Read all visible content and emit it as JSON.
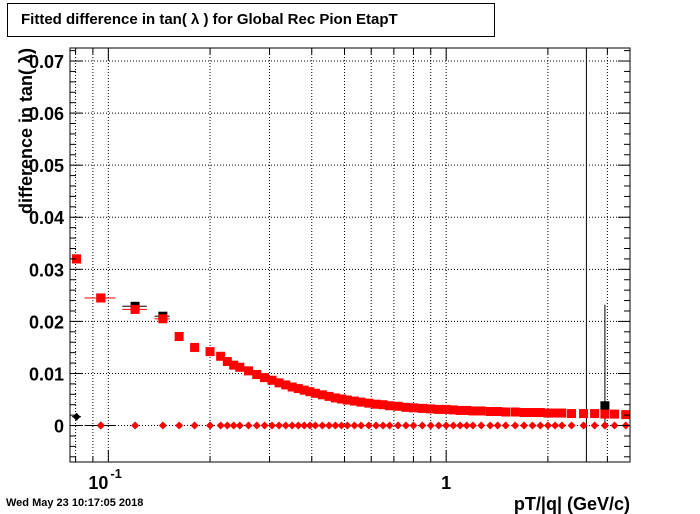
{
  "title": "Fitted difference in tan( λ ) for Global Rec Pion EtapT",
  "timestamp": "Wed May 23 10:17:05 2018",
  "chart_data": {
    "type": "scatter",
    "title": "Fitted difference in tan( λ ) for Global Rec Pion EtapT",
    "xlabel": "pT/|q| (GeV/c)",
    "ylabel": "difference in tan( λ)",
    "x_scale": "log",
    "xlim": [
      0.077,
      3.5
    ],
    "ylim": [
      -0.007,
      0.0725
    ],
    "grid": true,
    "x_ticks": [
      {
        "value": 0.1,
        "label": "10",
        "exp": "-1"
      },
      {
        "value": 1,
        "label": "1",
        "exp": ""
      }
    ],
    "y_ticks": [
      {
        "value": 0,
        "label": "0"
      },
      {
        "value": 0.01,
        "label": "0.01"
      },
      {
        "value": 0.02,
        "label": "0.02"
      },
      {
        "value": 0.03,
        "label": "0.03"
      },
      {
        "value": 0.04,
        "label": "0.04"
      },
      {
        "value": 0.05,
        "label": "0.05"
      },
      {
        "value": 0.06,
        "label": "0.06"
      },
      {
        "value": 0.07,
        "label": "0.07"
      }
    ],
    "series": [
      {
        "color": "#000000",
        "marker": "square",
        "x": [
          0.0805,
          0.095,
          0.12,
          0.145,
          2.95
        ],
        "y": [
          0.032,
          0.0245,
          0.0229,
          0.021,
          0.0038
        ],
        "x_err": [
          [
            0.078,
            0.083
          ],
          [
            0.085,
            0.105
          ],
          [
            0.11,
            0.13
          ],
          [
            0.137,
            0.152
          ],
          [
            2.9,
            3.0
          ]
        ]
      },
      {
        "color": "#ff0000",
        "marker": "square",
        "x": [
          0.0805,
          0.095,
          0.12,
          0.145,
          0.162,
          0.18,
          0.2,
          0.215,
          0.225,
          0.235,
          0.245,
          0.26,
          0.275,
          0.29,
          0.305,
          0.32,
          0.335,
          0.35,
          0.365,
          0.38,
          0.395,
          0.41,
          0.43,
          0.45,
          0.47,
          0.49,
          0.51,
          0.535,
          0.56,
          0.59,
          0.62,
          0.65,
          0.68,
          0.72,
          0.76,
          0.8,
          0.85,
          0.9,
          0.95,
          1.0,
          1.05,
          1.1,
          1.15,
          1.2,
          1.27,
          1.35,
          1.42,
          1.5,
          1.6,
          1.7,
          1.8,
          1.9,
          2.0,
          2.1,
          2.2,
          2.35,
          2.55,
          2.75,
          2.95,
          3.15,
          3.4
        ],
        "y": [
          0.032,
          0.0245,
          0.0223,
          0.0205,
          0.0171,
          0.015,
          0.0142,
          0.0133,
          0.0123,
          0.0116,
          0.0112,
          0.0105,
          0.0098,
          0.0092,
          0.0087,
          0.0082,
          0.0078,
          0.0074,
          0.0071,
          0.0068,
          0.0065,
          0.0062,
          0.0059,
          0.0056,
          0.0053,
          0.0051,
          0.0049,
          0.0047,
          0.0045,
          0.0043,
          0.0041,
          0.004,
          0.0038,
          0.0037,
          0.0035,
          0.0034,
          0.0033,
          0.0032,
          0.0031,
          0.0031,
          0.003,
          0.0029,
          0.0029,
          0.0028,
          0.0028,
          0.0027,
          0.0027,
          0.0026,
          0.0026,
          0.0025,
          0.0025,
          0.0025,
          0.0024,
          0.0024,
          0.0024,
          0.0023,
          0.0023,
          0.0023,
          0.0022,
          0.0022,
          0.0021
        ],
        "x_err": [
          [
            0.078,
            0.083
          ],
          [
            0.085,
            0.105
          ],
          [
            0.11,
            0.13
          ],
          [
            0.137,
            0.152
          ]
        ]
      },
      {
        "color": "#000000",
        "marker": "diamond",
        "x": [
          0.0805,
          0.095,
          2.95
        ],
        "y": [
          0.0017,
          0.0,
          0.0
        ],
        "x_err": [
          [
            0.078,
            0.083
          ],
          [
            0.085,
            0.105
          ]
        ]
      },
      {
        "color": "#ff0000",
        "marker": "diamond",
        "x": [
          0.095,
          0.12,
          0.145,
          0.162,
          0.18,
          0.2,
          0.215,
          0.225,
          0.235,
          0.245,
          0.26,
          0.275,
          0.29,
          0.305,
          0.32,
          0.335,
          0.35,
          0.365,
          0.38,
          0.395,
          0.41,
          0.43,
          0.45,
          0.47,
          0.49,
          0.51,
          0.535,
          0.56,
          0.59,
          0.62,
          0.65,
          0.68,
          0.72,
          0.76,
          0.8,
          0.85,
          0.9,
          0.95,
          1.0,
          1.05,
          1.1,
          1.15,
          1.2,
          1.27,
          1.35,
          1.42,
          1.5,
          1.6,
          1.7,
          1.8,
          1.9,
          2.0,
          2.1,
          2.2,
          2.35,
          2.55,
          2.75,
          2.95,
          3.15,
          3.4
        ],
        "y": [
          0,
          0,
          0,
          0,
          0,
          0,
          0,
          0,
          0,
          0,
          0,
          0,
          0,
          0,
          0,
          0,
          0,
          0,
          0,
          0,
          0,
          0,
          0,
          0,
          0,
          0,
          0,
          0,
          0,
          0,
          0,
          0,
          0,
          0,
          0,
          0,
          0,
          0,
          0,
          0,
          0,
          0,
          0,
          0,
          0,
          0,
          0,
          0,
          0,
          0,
          0,
          0,
          0,
          0,
          0,
          0,
          0,
          0,
          0,
          0
        ]
      }
    ],
    "vertical_lines": [
      {
        "x": 2.6,
        "y_from": -0.007,
        "y_to": 0.0725,
        "color": "#000000"
      },
      {
        "x": 2.95,
        "y_from": 0.0,
        "y_to": 0.0232,
        "color": "#000000"
      }
    ]
  }
}
